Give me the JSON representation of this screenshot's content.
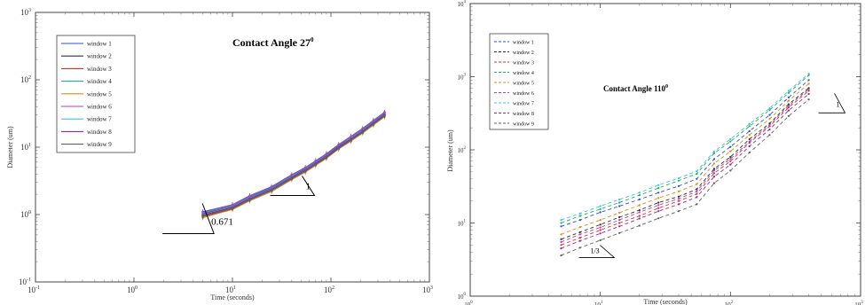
{
  "chart_data": [
    {
      "type": "line",
      "title": "Contact Angle 27",
      "title_superscript": "0",
      "xlabel": "Time (seconds)",
      "ylabel": "Diameter (um)",
      "xscale": "log",
      "yscale": "log",
      "xlim": [
        0.1,
        1000
      ],
      "ylim": [
        0.1,
        1000
      ],
      "x_ticks": [
        "10",
        "10",
        "10",
        "10",
        "10"
      ],
      "x_tick_exponents": [
        "-1",
        "0",
        "1",
        "2",
        "3"
      ],
      "y_ticks": [
        "10",
        "10",
        "10",
        "10",
        "10"
      ],
      "y_tick_exponents": [
        "-1",
        "0",
        "1",
        "2",
        "3"
      ],
      "legend_position": "top-left",
      "x": [
        5,
        10,
        15,
        25,
        40,
        55,
        70,
        90,
        120,
        160,
        210,
        270,
        350
      ],
      "series": [
        {
          "name": "window 1",
          "color": "#3050d0",
          "style": "solid",
          "values": [
            1.1,
            1.4,
            1.9,
            2.6,
            3.9,
            5.0,
            6.3,
            8.0,
            11.0,
            14.5,
            19.0,
            25.0,
            33.0
          ]
        },
        {
          "name": "window 2",
          "color": "#303030",
          "style": "solid",
          "values": [
            1.02,
            1.32,
            1.78,
            2.45,
            3.65,
            4.7,
            5.9,
            7.5,
            10.3,
            13.6,
            17.8,
            23.5,
            31.0
          ]
        },
        {
          "name": "window 3",
          "color": "#e03020",
          "style": "solid",
          "values": [
            0.95,
            1.25,
            1.68,
            2.3,
            3.45,
            4.45,
            5.6,
            7.1,
            9.8,
            12.9,
            16.9,
            22.3,
            29.5
          ]
        },
        {
          "name": "window 4",
          "color": "#20b0a0",
          "style": "solid",
          "values": [
            1.06,
            1.37,
            1.85,
            2.52,
            3.8,
            4.85,
            6.1,
            7.8,
            10.7,
            14.1,
            18.4,
            24.3,
            32.0
          ]
        },
        {
          "name": "window 5",
          "color": "#d09020",
          "style": "solid",
          "values": [
            0.9,
            1.19,
            1.6,
            2.2,
            3.3,
            4.25,
            5.35,
            6.8,
            9.4,
            12.3,
            16.2,
            21.3,
            28.2
          ]
        },
        {
          "name": "window 6",
          "color": "#b040c0",
          "style": "solid",
          "values": [
            1.08,
            1.39,
            1.88,
            2.56,
            3.85,
            4.93,
            6.2,
            7.9,
            10.85,
            14.3,
            18.7,
            24.7,
            32.6
          ]
        },
        {
          "name": "window 7",
          "color": "#40c0e0",
          "style": "solid",
          "values": [
            1.0,
            1.3,
            1.75,
            2.4,
            3.6,
            4.6,
            5.8,
            7.4,
            10.1,
            13.4,
            17.5,
            23.1,
            30.5
          ]
        },
        {
          "name": "window 8",
          "color": "#8030a0",
          "style": "solid",
          "values": [
            0.98,
            1.28,
            1.72,
            2.36,
            3.55,
            4.55,
            5.72,
            7.3,
            10.0,
            13.2,
            17.3,
            22.8,
            30.1
          ]
        },
        {
          "name": "window 9",
          "color": "#606060",
          "style": "solid",
          "values": [
            0.93,
            1.22,
            1.65,
            2.27,
            3.4,
            4.38,
            5.5,
            7.0,
            9.6,
            12.7,
            16.6,
            21.9,
            29.0
          ]
        }
      ],
      "slope_annotations": [
        {
          "label": "0.671",
          "x": 5.5,
          "y": 0.75
        },
        {
          "label": "1",
          "x": 45,
          "y": 2.6
        }
      ]
    },
    {
      "type": "line",
      "title": "Contact Angle 110",
      "title_superscript": "0",
      "xlabel": "Time (seconds)",
      "ylabel": "Diameter (um)",
      "xscale": "log",
      "yscale": "log",
      "xlim": [
        1,
        1000
      ],
      "ylim": [
        1,
        10000
      ],
      "x_ticks": [
        "10",
        "10",
        "10",
        "10"
      ],
      "x_tick_exponents": [
        "0",
        "1",
        "2",
        "3"
      ],
      "y_ticks": [
        "10",
        "10",
        "10",
        "10",
        "10"
      ],
      "y_tick_exponents": [
        "0",
        "1",
        "2",
        "3",
        "4"
      ],
      "legend_position": "top-left",
      "x": [
        5,
        7,
        10,
        14,
        20,
        28,
        40,
        55,
        75,
        100,
        140,
        200,
        280,
        400
      ],
      "series": [
        {
          "name": "window 1",
          "color": "#3050d0",
          "style": "dashed",
          "values": [
            9,
            11,
            14,
            17,
            21,
            26,
            32,
            40,
            75,
            110,
            180,
            300,
            520,
            900
          ]
        },
        {
          "name": "window 2",
          "color": "#303030",
          "style": "dashed",
          "values": [
            6,
            7.5,
            9.5,
            12,
            15,
            19,
            23,
            29,
            55,
            80,
            140,
            230,
            420,
            700
          ]
        },
        {
          "name": "window 3",
          "color": "#e03020",
          "style": "dashed",
          "values": [
            5,
            6.3,
            8,
            10,
            12.5,
            16,
            20,
            25,
            48,
            70,
            125,
            210,
            380,
            640
          ]
        },
        {
          "name": "window 4",
          "color": "#20b060",
          "style": "dashed",
          "values": [
            10,
            12.5,
            15.5,
            19,
            24,
            30,
            38,
            47,
            90,
            130,
            210,
            350,
            600,
            1050
          ]
        },
        {
          "name": "window 5",
          "color": "#d09020",
          "style": "dashed",
          "values": [
            7,
            8.8,
            11,
            13.8,
            17.5,
            22,
            27,
            34,
            65,
            95,
            160,
            265,
            470,
            800
          ]
        },
        {
          "name": "window 6",
          "color": "#b040c0",
          "style": "dashed",
          "values": [
            5.5,
            7,
            8.7,
            11,
            14,
            17.5,
            21.5,
            27,
            52,
            75,
            130,
            220,
            400,
            670
          ]
        },
        {
          "name": "window 7",
          "color": "#40c0e0",
          "style": "dashed",
          "values": [
            11,
            13.5,
            17,
            21,
            26,
            33,
            41,
            51,
            95,
            140,
            225,
            370,
            640,
            1100
          ]
        },
        {
          "name": "window 8",
          "color": "#8030a0",
          "style": "dashed",
          "values": [
            4.5,
            5.7,
            7.2,
            9,
            11.5,
            14.5,
            18,
            22.5,
            43,
            63,
            112,
            190,
            345,
            580
          ]
        },
        {
          "name": "window 9",
          "color": "#606060",
          "style": "dashed",
          "values": [
            3.6,
            4.6,
            5.8,
            7.3,
            9.2,
            11.6,
            14.5,
            18,
            35,
            52,
            92,
            160,
            290,
            490
          ]
        }
      ],
      "slope_annotations": [
        {
          "label": "1/3",
          "x": 8,
          "y": 4.2
        },
        {
          "label": "1",
          "x": 650,
          "y": 400
        }
      ]
    }
  ]
}
